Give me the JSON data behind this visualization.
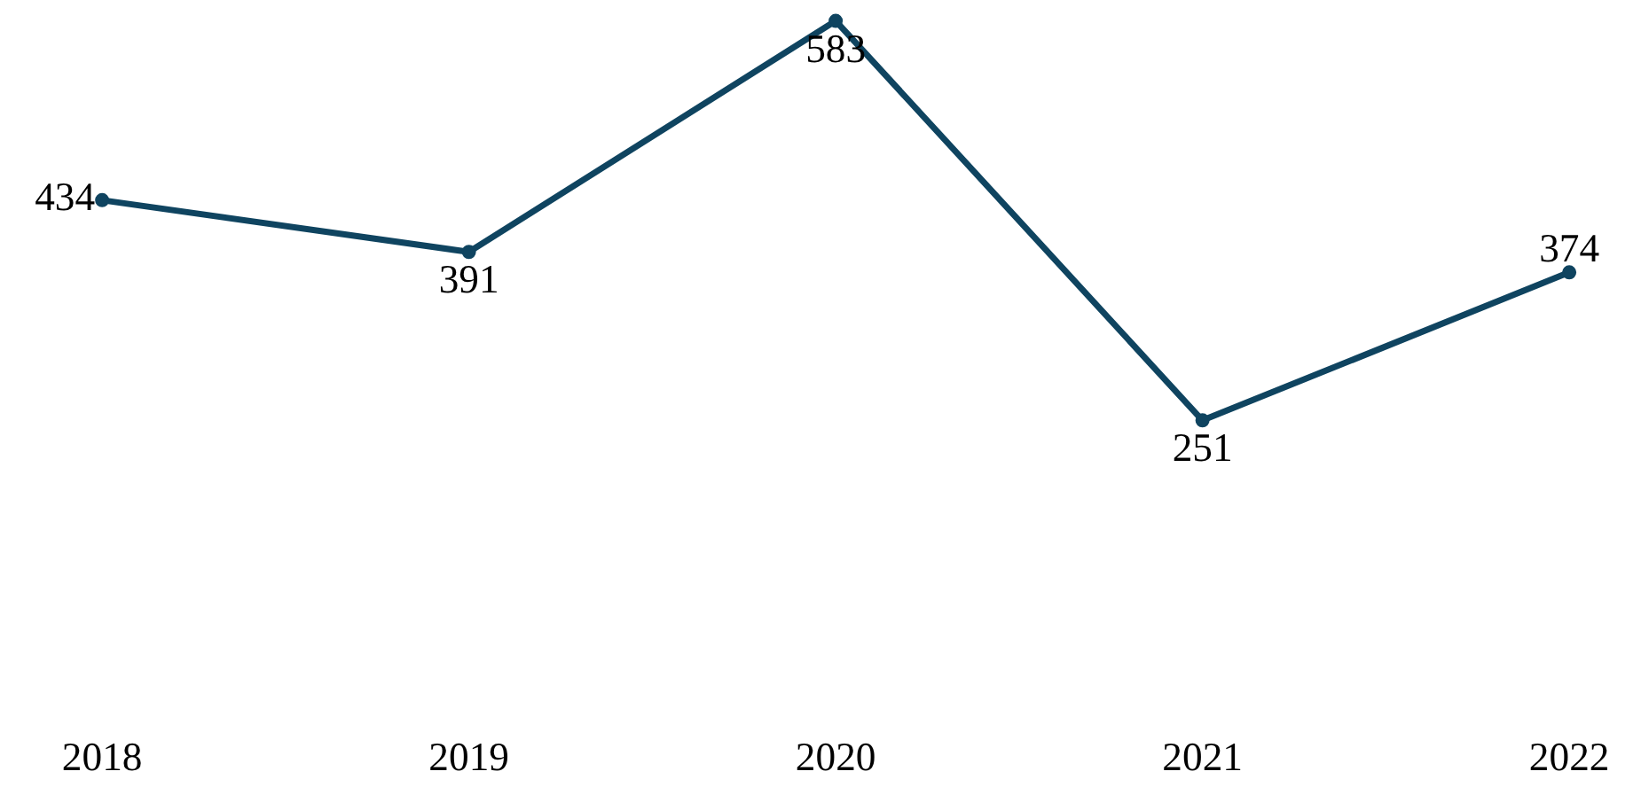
{
  "chart_data": {
    "type": "line",
    "categories": [
      "2018",
      "2019",
      "2020",
      "2021",
      "2022"
    ],
    "series": [
      {
        "color": "#0f4460",
        "values": [
          434,
          391,
          583,
          251,
          374
        ]
      }
    ],
    "data_labels": true,
    "tick_labels": "x",
    "grid": false,
    "marker": "circle",
    "line_style": "solid"
  }
}
